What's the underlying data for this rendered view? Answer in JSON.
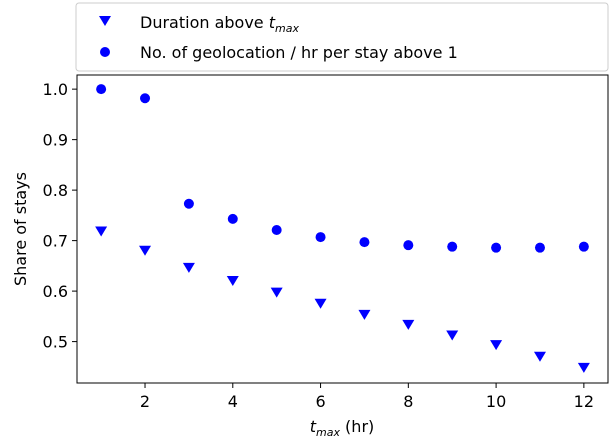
{
  "chart_data": {
    "type": "scatter",
    "x": [
      1,
      2,
      3,
      4,
      5,
      6,
      7,
      8,
      9,
      10,
      11,
      12
    ],
    "series": [
      {
        "name": "Duration above t_max",
        "name_main": "Duration above ",
        "name_italic": "t",
        "name_sub": "max",
        "marker": "triangle-down",
        "color": "#0000ff",
        "values": [
          0.718,
          0.68,
          0.646,
          0.62,
          0.597,
          0.575,
          0.553,
          0.533,
          0.512,
          0.493,
          0.47,
          0.448
        ]
      },
      {
        "name": "No. of geolocation / hr per stay above 1",
        "marker": "circle",
        "color": "#0000ff",
        "values": [
          1.0,
          0.982,
          0.773,
          0.743,
          0.721,
          0.707,
          0.697,
          0.691,
          0.688,
          0.686,
          0.686,
          0.688
        ]
      }
    ],
    "xlabel": "t_max (hr)",
    "xlabel_italic": "t",
    "xlabel_sub": "max",
    "xlabel_rest": " (hr)",
    "ylabel": "Share of stays",
    "xlim": [
      0.45,
      12.55
    ],
    "ylim": [
      0.418,
      1.028
    ],
    "xticks": [
      2,
      4,
      6,
      8,
      10,
      12
    ],
    "yticks": [
      0.5,
      0.6,
      0.7,
      0.8,
      0.9,
      1.0
    ],
    "ytick_labels": [
      "0.5",
      "0.6",
      "0.7",
      "0.8",
      "0.9",
      "1.0"
    ],
    "grid": false,
    "legend_position": "top, above plot"
  }
}
